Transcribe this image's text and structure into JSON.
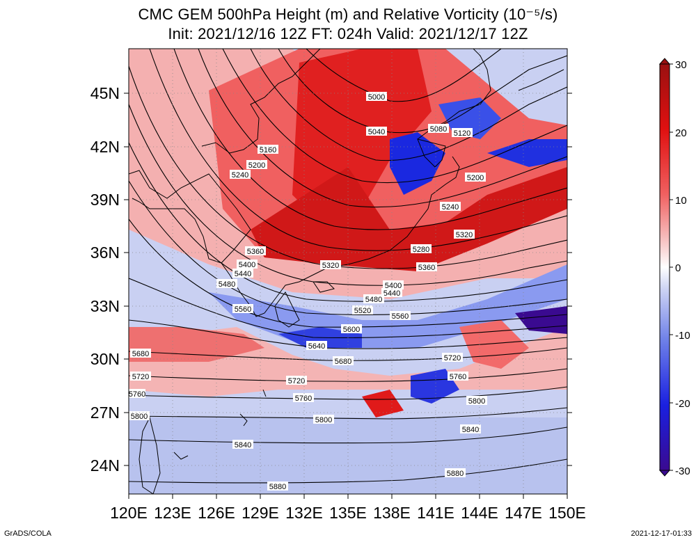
{
  "title_line1": "CMC GEM 500hPa Height (m) and Relative Vorticity (10⁻⁵/s)",
  "title_line2": "Init: 2021/12/16 12Z  FT: 024h  Valid: 2021/12/17 12Z",
  "lat_ticks": [
    "45N",
    "42N",
    "39N",
    "36N",
    "33N",
    "30N",
    "27N",
    "24N"
  ],
  "lon_ticks": [
    "120E",
    "123E",
    "126E",
    "129E",
    "132E",
    "135E",
    "138E",
    "141E",
    "144E",
    "147E",
    "150E"
  ],
  "colorbar": {
    "ticks": [
      "30",
      "20",
      "10",
      "0",
      "-10",
      "-20",
      "-30"
    ],
    "colors": [
      "#9a1010",
      "#e01010",
      "#f06060",
      "#f8c8c8",
      "#ffffff",
      "#c8d0f0",
      "#6e80e8",
      "#1a20e0",
      "#3a0a90"
    ]
  },
  "contour_labels": [
    "5000",
    "5040",
    "5080",
    "5120",
    "5160",
    "5200",
    "5240",
    "5280",
    "5320",
    "5360",
    "5400",
    "5440",
    "5480",
    "5520",
    "5560",
    "5600",
    "5640",
    "5680",
    "5720",
    "5760",
    "5800",
    "5840",
    "5880"
  ],
  "footer_left": "GrADS/COLA",
  "footer_right": "2021-12-17-01:33"
}
